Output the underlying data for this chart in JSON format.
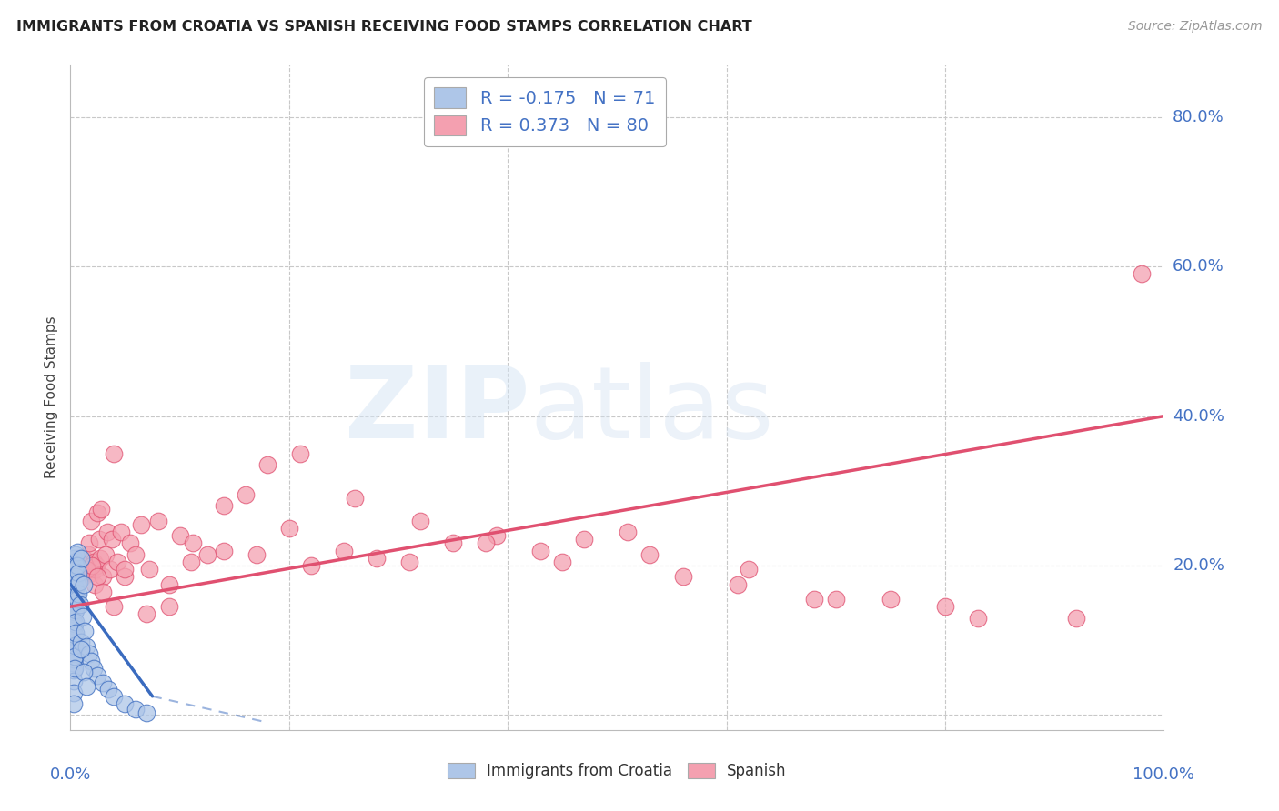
{
  "title": "IMMIGRANTS FROM CROATIA VS SPANISH RECEIVING FOOD STAMPS CORRELATION CHART",
  "source": "Source: ZipAtlas.com",
  "ylabel": "Receiving Food Stamps",
  "ytick_labels": [
    "0.0%",
    "20.0%",
    "40.0%",
    "60.0%",
    "80.0%"
  ],
  "ytick_values": [
    0.0,
    0.2,
    0.4,
    0.6,
    0.8
  ],
  "xlim": [
    0,
    1.0
  ],
  "ylim": [
    -0.02,
    0.87
  ],
  "legend_croatia_R": "-0.175",
  "legend_croatia_N": "71",
  "legend_spanish_R": "0.373",
  "legend_spanish_N": "80",
  "croatia_color": "#aec6e8",
  "spanish_color": "#f4a0b0",
  "croatia_line_color": "#3a6bbf",
  "spanish_line_color": "#e05070",
  "title_color": "#222222",
  "axis_label_color": "#4472c4",
  "grid_color": "#c8c8c8",
  "background_color": "#ffffff",
  "croatia_line_x0": 0.0,
  "croatia_line_y0": 0.175,
  "croatia_line_x1": 0.075,
  "croatia_line_y1": 0.025,
  "croatia_line_dash_x1": 0.18,
  "croatia_line_dash_y1": -0.01,
  "spanish_line_x0": 0.0,
  "spanish_line_y0": 0.145,
  "spanish_line_x1": 1.0,
  "spanish_line_y1": 0.4,
  "croatia_scatter_x": [
    0.002,
    0.002,
    0.002,
    0.002,
    0.002,
    0.002,
    0.002,
    0.002,
    0.002,
    0.002,
    0.003,
    0.003,
    0.003,
    0.003,
    0.003,
    0.003,
    0.003,
    0.003,
    0.003,
    0.003,
    0.003,
    0.003,
    0.003,
    0.003,
    0.003,
    0.004,
    0.004,
    0.004,
    0.004,
    0.004,
    0.004,
    0.004,
    0.004,
    0.004,
    0.004,
    0.004,
    0.005,
    0.005,
    0.005,
    0.005,
    0.005,
    0.005,
    0.005,
    0.005,
    0.006,
    0.006,
    0.006,
    0.006,
    0.007,
    0.007,
    0.008,
    0.009,
    0.01,
    0.01,
    0.011,
    0.012,
    0.013,
    0.015,
    0.017,
    0.019,
    0.021,
    0.025,
    0.03,
    0.035,
    0.04,
    0.05,
    0.06,
    0.07,
    0.01,
    0.012,
    0.015
  ],
  "croatia_scatter_y": [
    0.195,
    0.185,
    0.175,
    0.16,
    0.145,
    0.13,
    0.115,
    0.1,
    0.085,
    0.07,
    0.21,
    0.2,
    0.19,
    0.18,
    0.165,
    0.15,
    0.135,
    0.12,
    0.105,
    0.09,
    0.075,
    0.06,
    0.045,
    0.03,
    0.015,
    0.205,
    0.195,
    0.183,
    0.168,
    0.153,
    0.138,
    0.122,
    0.108,
    0.093,
    0.078,
    0.063,
    0.215,
    0.2,
    0.185,
    0.17,
    0.155,
    0.14,
    0.125,
    0.11,
    0.218,
    0.2,
    0.175,
    0.155,
    0.19,
    0.162,
    0.178,
    0.148,
    0.21,
    0.098,
    0.132,
    0.175,
    0.112,
    0.092,
    0.082,
    0.072,
    0.062,
    0.053,
    0.043,
    0.035,
    0.025,
    0.015,
    0.008,
    0.003,
    0.088,
    0.058,
    0.038
  ],
  "spanish_scatter_x": [
    0.005,
    0.007,
    0.008,
    0.01,
    0.011,
    0.012,
    0.013,
    0.014,
    0.015,
    0.016,
    0.017,
    0.018,
    0.019,
    0.02,
    0.021,
    0.022,
    0.023,
    0.024,
    0.025,
    0.026,
    0.027,
    0.028,
    0.03,
    0.032,
    0.034,
    0.036,
    0.038,
    0.04,
    0.043,
    0.046,
    0.05,
    0.055,
    0.06,
    0.065,
    0.072,
    0.08,
    0.09,
    0.1,
    0.112,
    0.125,
    0.14,
    0.16,
    0.18,
    0.2,
    0.22,
    0.25,
    0.28,
    0.31,
    0.35,
    0.39,
    0.43,
    0.47,
    0.51,
    0.56,
    0.62,
    0.68,
    0.75,
    0.83,
    0.92,
    0.98,
    0.015,
    0.02,
    0.025,
    0.03,
    0.04,
    0.05,
    0.07,
    0.09,
    0.11,
    0.14,
    0.17,
    0.21,
    0.26,
    0.32,
    0.38,
    0.45,
    0.53,
    0.61,
    0.7,
    0.8
  ],
  "spanish_scatter_y": [
    0.2,
    0.195,
    0.21,
    0.195,
    0.185,
    0.21,
    0.195,
    0.205,
    0.195,
    0.215,
    0.23,
    0.19,
    0.26,
    0.19,
    0.205,
    0.175,
    0.195,
    0.2,
    0.27,
    0.235,
    0.21,
    0.275,
    0.185,
    0.215,
    0.245,
    0.195,
    0.235,
    0.35,
    0.205,
    0.245,
    0.185,
    0.23,
    0.215,
    0.255,
    0.195,
    0.26,
    0.175,
    0.24,
    0.23,
    0.215,
    0.22,
    0.295,
    0.335,
    0.25,
    0.2,
    0.22,
    0.21,
    0.205,
    0.23,
    0.24,
    0.22,
    0.235,
    0.245,
    0.185,
    0.195,
    0.155,
    0.155,
    0.13,
    0.13,
    0.59,
    0.195,
    0.2,
    0.185,
    0.165,
    0.145,
    0.195,
    0.135,
    0.145,
    0.205,
    0.28,
    0.215,
    0.35,
    0.29,
    0.26,
    0.23,
    0.205,
    0.215,
    0.175,
    0.155,
    0.145
  ]
}
